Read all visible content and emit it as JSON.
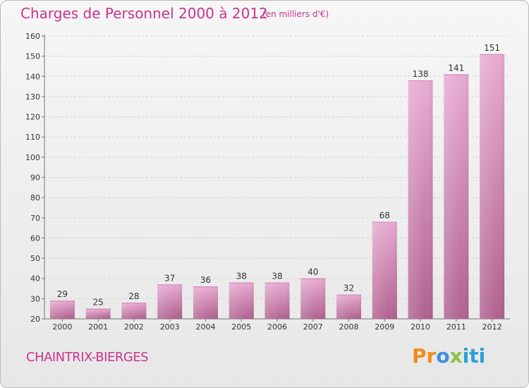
{
  "header": {
    "title": "Charges de Personnel 2000 à 2012",
    "subtitle": "(en milliers d'€)"
  },
  "footer": {
    "place": "CHAINTRIX-BIERGES",
    "logo_text": "Proxiti",
    "logo_parts": [
      "Pr",
      "o",
      "x",
      "iti"
    ]
  },
  "colors": {
    "title": "#c8358c",
    "bar_top": "#e6a6cf",
    "bar_bottom": "#b1618f",
    "grid": "#d6d6d6"
  },
  "chart_data": {
    "type": "bar",
    "title": "Charges de Personnel 2000 à 2012",
    "subtitle": "(en milliers d'€)",
    "categories": [
      "2000",
      "2001",
      "2002",
      "2003",
      "2004",
      "2005",
      "2006",
      "2007",
      "2008",
      "2009",
      "2010",
      "2011",
      "2012"
    ],
    "values": [
      29,
      25,
      28,
      37,
      36,
      38,
      38,
      40,
      32,
      68,
      138,
      141,
      151
    ],
    "ylim": [
      20,
      160
    ],
    "yticks": [
      20,
      30,
      40,
      50,
      60,
      70,
      80,
      90,
      100,
      110,
      120,
      130,
      140,
      150,
      160
    ],
    "grid": true,
    "data_labels": true
  }
}
